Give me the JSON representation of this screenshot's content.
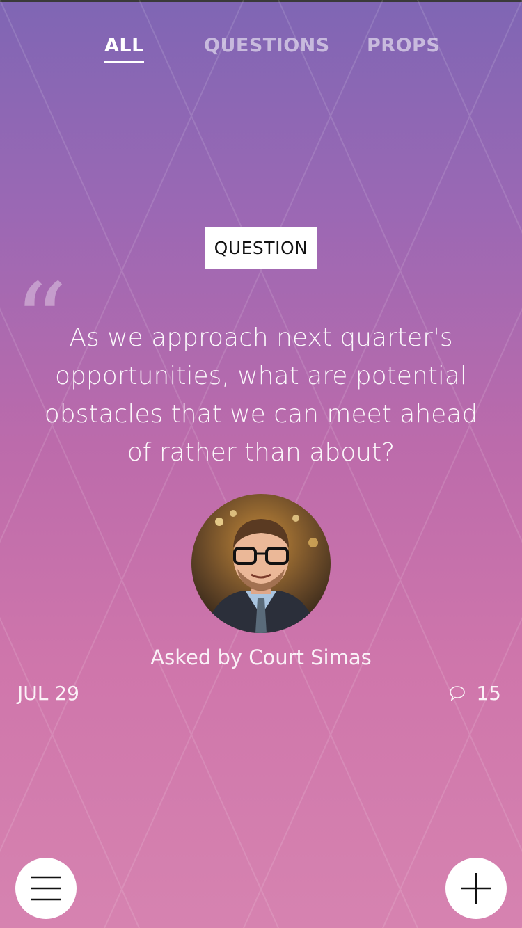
{
  "tabs": [
    {
      "label": "ALL",
      "active": true
    },
    {
      "label": "QUESTIONS",
      "active": false
    },
    {
      "label": "PROPS",
      "active": false
    }
  ],
  "card": {
    "type_label": "QUESTION",
    "quote_mark": "“",
    "question": "As we approach next quarter's opportunities, what are potential obstacles that we can meet ahead of rather than about?",
    "asked_by": "Asked by Court Simas",
    "date": "JUL 29",
    "comment_count": "15"
  },
  "icons": {
    "menu": "hamburger-icon",
    "add": "plus-icon",
    "comments": "speech-bubble-icon"
  },
  "colors": {
    "gradient_top": "#7f66b4",
    "gradient_bottom": "#d683b0",
    "badge_bg": "#ffffff",
    "button_bg": "#ffffff"
  }
}
